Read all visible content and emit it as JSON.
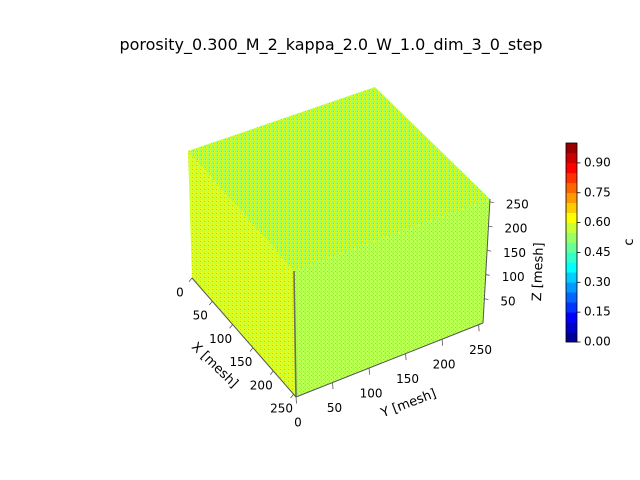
{
  "chart_data": {
    "type": "heatmap",
    "projection": "3d-voxel-cube",
    "title": "porosity_0.300_M_2_kappa_2.0_W_1.0_dim_3_0_step",
    "xlabel": "X [mesh]",
    "ylabel": "Y [mesh]",
    "zlabel": "Z [mesh]",
    "x_ticks": [
      "0",
      "50",
      "100",
      "150",
      "200",
      "250"
    ],
    "y_ticks": [
      "0",
      "50",
      "100",
      "150",
      "200",
      "250"
    ],
    "z_ticks": [
      "50",
      "100",
      "150",
      "200",
      "250"
    ],
    "xlim": [
      0,
      256
    ],
    "ylim": [
      0,
      256
    ],
    "zlim": [
      0,
      256
    ],
    "colormap": "jet",
    "colorbar": {
      "label": "c",
      "ticks": [
        "0.00",
        "0.15",
        "0.30",
        "0.45",
        "0.60",
        "0.75",
        "0.90"
      ],
      "range": [
        0,
        1
      ],
      "levels": 20
    },
    "field_description": "noisy field dominated by c between 0.45 and 0.70",
    "value_distribution": {
      "mean": 0.58,
      "spread": 0.1
    }
  }
}
